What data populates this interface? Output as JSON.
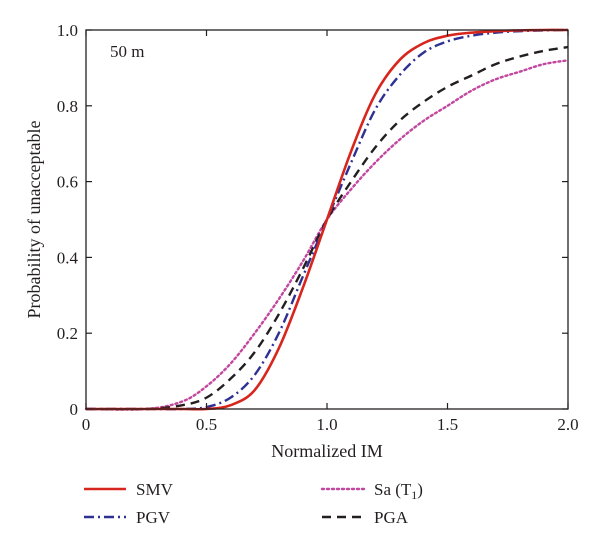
{
  "chart_data": {
    "type": "line",
    "title": "",
    "annotation": "50 m",
    "xlabel": "Normalized IM",
    "ylabel": "Probability of unacceptable",
    "xlim": [
      0,
      2.0
    ],
    "ylim": [
      0,
      1.0
    ],
    "x_ticks": [
      "0",
      "0.5",
      "1.0",
      "1.5",
      "2.0"
    ],
    "y_ticks": [
      "0",
      "0.2",
      "0.4",
      "0.6",
      "0.8",
      "1.0"
    ],
    "grid": false,
    "legend_position": "below",
    "x": [
      0.0,
      0.25,
      0.4,
      0.5,
      0.6,
      0.7,
      0.8,
      0.9,
      1.0,
      1.1,
      1.2,
      1.3,
      1.4,
      1.5,
      1.6,
      1.7,
      1.8,
      1.9,
      2.0
    ],
    "series": [
      {
        "name": "SMV",
        "color": "#d7261e",
        "dash": "solid",
        "values": [
          0.0,
          0.0,
          0.0,
          0.0,
          0.01,
          0.05,
          0.16,
          0.32,
          0.5,
          0.68,
          0.83,
          0.92,
          0.965,
          0.985,
          0.993,
          0.997,
          0.999,
          1.0,
          1.0
        ]
      },
      {
        "name": "PGV",
        "color": "#2e3192",
        "dash": "dashdot",
        "values": [
          0.0,
          0.0,
          0.0,
          0.005,
          0.03,
          0.09,
          0.2,
          0.35,
          0.5,
          0.65,
          0.79,
          0.88,
          0.94,
          0.97,
          0.985,
          0.993,
          0.997,
          0.999,
          1.0
        ]
      },
      {
        "name": "Sa (T1)",
        "color": "#c2479f",
        "dash": "dotted",
        "values": [
          0.0,
          0.0,
          0.02,
          0.06,
          0.12,
          0.2,
          0.29,
          0.39,
          0.5,
          0.58,
          0.65,
          0.71,
          0.76,
          0.8,
          0.84,
          0.87,
          0.89,
          0.91,
          0.92
        ]
      },
      {
        "name": "PGA",
        "color": "#231f20",
        "dash": "dashed",
        "values": [
          0.0,
          0.0,
          0.01,
          0.03,
          0.08,
          0.15,
          0.25,
          0.37,
          0.5,
          0.6,
          0.69,
          0.76,
          0.81,
          0.85,
          0.88,
          0.91,
          0.93,
          0.945,
          0.955
        ]
      }
    ],
    "legend": [
      {
        "label": "SMV",
        "subscript": ""
      },
      {
        "label": "PGV",
        "subscript": ""
      },
      {
        "label": "Sa (T",
        "subscript": "1",
        "suffix": ")"
      },
      {
        "label": "PGA",
        "subscript": ""
      }
    ]
  }
}
